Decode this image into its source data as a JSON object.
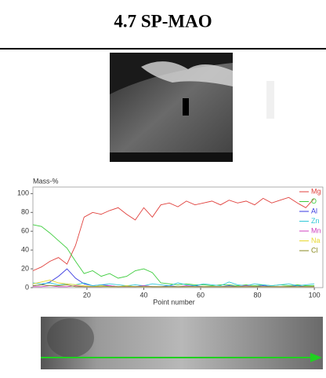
{
  "header": {
    "title": "4.7 SP-MAO"
  },
  "chart_data": {
    "type": "line",
    "y_label": "Mass-%",
    "x_label": "Point number",
    "x": [
      1,
      4,
      7,
      10,
      13,
      16,
      19,
      22,
      25,
      28,
      31,
      34,
      37,
      40,
      43,
      46,
      49,
      52,
      55,
      58,
      61,
      64,
      67,
      70,
      73,
      76,
      79,
      82,
      85,
      88,
      91,
      94,
      97,
      100
    ],
    "series": [
      {
        "name": "Mg",
        "color": "#e0403c",
        "values": [
          18,
          22,
          28,
          32,
          25,
          45,
          75,
          80,
          78,
          82,
          85,
          78,
          72,
          85,
          75,
          88,
          90,
          86,
          92,
          88,
          90,
          92,
          88,
          93,
          90,
          92,
          88,
          95,
          90,
          93,
          96,
          90,
          85,
          95
        ]
      },
      {
        "name": "O",
        "color": "#3ccc3c",
        "values": [
          67,
          65,
          58,
          50,
          42,
          28,
          15,
          18,
          12,
          15,
          10,
          12,
          18,
          20,
          16,
          5,
          4,
          3,
          4,
          3,
          3,
          2,
          3,
          3,
          2,
          3,
          2,
          3,
          2,
          3,
          2,
          3,
          2,
          2
        ]
      },
      {
        "name": "Al",
        "color": "#3a3ae0",
        "values": [
          2,
          3,
          6,
          12,
          20,
          10,
          4,
          2,
          3,
          2,
          1,
          2,
          1,
          2,
          1,
          1,
          2,
          1,
          1,
          2,
          1,
          1,
          1,
          2,
          1,
          1,
          1,
          2,
          1,
          1,
          1,
          2,
          1,
          1
        ]
      },
      {
        "name": "Zn",
        "color": "#30c8d8",
        "values": [
          5,
          4,
          5,
          3,
          4,
          3,
          5,
          2,
          3,
          4,
          3,
          2,
          3,
          2,
          4,
          3,
          2,
          5,
          3,
          2,
          4,
          3,
          2,
          6,
          3,
          2,
          4,
          3,
          2,
          3,
          4,
          2,
          3,
          4
        ]
      },
      {
        "name": "Mn",
        "color": "#d040c0",
        "values": [
          1,
          1,
          2,
          1,
          1,
          2,
          1,
          1,
          1,
          2,
          1,
          1,
          1,
          2,
          1,
          1,
          1,
          1,
          2,
          1,
          1,
          1,
          1,
          1,
          1,
          2,
          1,
          1,
          1,
          1,
          1,
          1,
          1,
          1
        ]
      },
      {
        "name": "Na",
        "color": "#e8d830",
        "values": [
          4,
          6,
          8,
          5,
          4,
          3,
          2,
          1,
          2,
          1,
          1,
          2,
          1,
          1,
          1,
          1,
          1,
          1,
          1,
          1,
          1,
          1,
          1,
          1,
          1,
          1,
          1,
          1,
          1,
          1,
          1,
          1,
          1,
          1
        ]
      },
      {
        "name": "Cl",
        "color": "#8a8a20",
        "values": [
          2,
          3,
          2,
          2,
          3,
          1,
          1,
          1,
          1,
          1,
          1,
          1,
          1,
          1,
          1,
          1,
          1,
          1,
          1,
          1,
          1,
          1,
          1,
          1,
          1,
          1,
          1,
          1,
          1,
          1,
          1,
          1,
          1,
          1
        ]
      }
    ],
    "xlim": [
      1,
      103
    ],
    "ylim": [
      0,
      107
    ],
    "xticks": [
      20,
      40,
      60,
      80,
      100
    ],
    "yticks": [
      0,
      20,
      40,
      60,
      80,
      100
    ]
  }
}
